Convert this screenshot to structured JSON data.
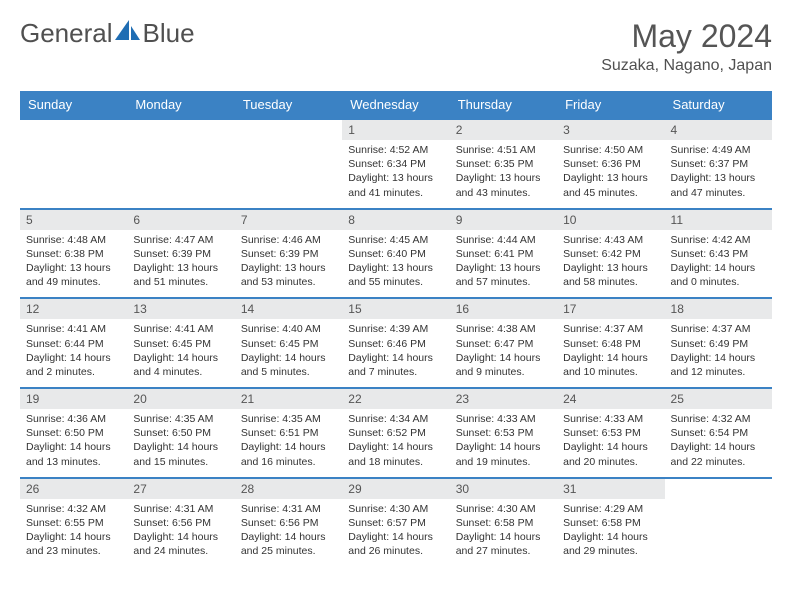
{
  "brand": {
    "text1": "General",
    "text2": "Blue"
  },
  "title": "May 2024",
  "location": "Suzaka, Nagano, Japan",
  "colors": {
    "header_bg": "#3b82c4",
    "header_text": "#ffffff",
    "daynum_bg": "#e8e9ea",
    "row_border": "#3b82c4",
    "text": "#333333",
    "title_color": "#555555"
  },
  "day_headers": [
    "Sunday",
    "Monday",
    "Tuesday",
    "Wednesday",
    "Thursday",
    "Friday",
    "Saturday"
  ],
  "weeks": [
    [
      {
        "num": "",
        "lines": []
      },
      {
        "num": "",
        "lines": []
      },
      {
        "num": "",
        "lines": []
      },
      {
        "num": "1",
        "lines": [
          "Sunrise: 4:52 AM",
          "Sunset: 6:34 PM",
          "Daylight: 13 hours",
          "and 41 minutes."
        ]
      },
      {
        "num": "2",
        "lines": [
          "Sunrise: 4:51 AM",
          "Sunset: 6:35 PM",
          "Daylight: 13 hours",
          "and 43 minutes."
        ]
      },
      {
        "num": "3",
        "lines": [
          "Sunrise: 4:50 AM",
          "Sunset: 6:36 PM",
          "Daylight: 13 hours",
          "and 45 minutes."
        ]
      },
      {
        "num": "4",
        "lines": [
          "Sunrise: 4:49 AM",
          "Sunset: 6:37 PM",
          "Daylight: 13 hours",
          "and 47 minutes."
        ]
      }
    ],
    [
      {
        "num": "5",
        "lines": [
          "Sunrise: 4:48 AM",
          "Sunset: 6:38 PM",
          "Daylight: 13 hours",
          "and 49 minutes."
        ]
      },
      {
        "num": "6",
        "lines": [
          "Sunrise: 4:47 AM",
          "Sunset: 6:39 PM",
          "Daylight: 13 hours",
          "and 51 minutes."
        ]
      },
      {
        "num": "7",
        "lines": [
          "Sunrise: 4:46 AM",
          "Sunset: 6:39 PM",
          "Daylight: 13 hours",
          "and 53 minutes."
        ]
      },
      {
        "num": "8",
        "lines": [
          "Sunrise: 4:45 AM",
          "Sunset: 6:40 PM",
          "Daylight: 13 hours",
          "and 55 minutes."
        ]
      },
      {
        "num": "9",
        "lines": [
          "Sunrise: 4:44 AM",
          "Sunset: 6:41 PM",
          "Daylight: 13 hours",
          "and 57 minutes."
        ]
      },
      {
        "num": "10",
        "lines": [
          "Sunrise: 4:43 AM",
          "Sunset: 6:42 PM",
          "Daylight: 13 hours",
          "and 58 minutes."
        ]
      },
      {
        "num": "11",
        "lines": [
          "Sunrise: 4:42 AM",
          "Sunset: 6:43 PM",
          "Daylight: 14 hours",
          "and 0 minutes."
        ]
      }
    ],
    [
      {
        "num": "12",
        "lines": [
          "Sunrise: 4:41 AM",
          "Sunset: 6:44 PM",
          "Daylight: 14 hours",
          "and 2 minutes."
        ]
      },
      {
        "num": "13",
        "lines": [
          "Sunrise: 4:41 AM",
          "Sunset: 6:45 PM",
          "Daylight: 14 hours",
          "and 4 minutes."
        ]
      },
      {
        "num": "14",
        "lines": [
          "Sunrise: 4:40 AM",
          "Sunset: 6:45 PM",
          "Daylight: 14 hours",
          "and 5 minutes."
        ]
      },
      {
        "num": "15",
        "lines": [
          "Sunrise: 4:39 AM",
          "Sunset: 6:46 PM",
          "Daylight: 14 hours",
          "and 7 minutes."
        ]
      },
      {
        "num": "16",
        "lines": [
          "Sunrise: 4:38 AM",
          "Sunset: 6:47 PM",
          "Daylight: 14 hours",
          "and 9 minutes."
        ]
      },
      {
        "num": "17",
        "lines": [
          "Sunrise: 4:37 AM",
          "Sunset: 6:48 PM",
          "Daylight: 14 hours",
          "and 10 minutes."
        ]
      },
      {
        "num": "18",
        "lines": [
          "Sunrise: 4:37 AM",
          "Sunset: 6:49 PM",
          "Daylight: 14 hours",
          "and 12 minutes."
        ]
      }
    ],
    [
      {
        "num": "19",
        "lines": [
          "Sunrise: 4:36 AM",
          "Sunset: 6:50 PM",
          "Daylight: 14 hours",
          "and 13 minutes."
        ]
      },
      {
        "num": "20",
        "lines": [
          "Sunrise: 4:35 AM",
          "Sunset: 6:50 PM",
          "Daylight: 14 hours",
          "and 15 minutes."
        ]
      },
      {
        "num": "21",
        "lines": [
          "Sunrise: 4:35 AM",
          "Sunset: 6:51 PM",
          "Daylight: 14 hours",
          "and 16 minutes."
        ]
      },
      {
        "num": "22",
        "lines": [
          "Sunrise: 4:34 AM",
          "Sunset: 6:52 PM",
          "Daylight: 14 hours",
          "and 18 minutes."
        ]
      },
      {
        "num": "23",
        "lines": [
          "Sunrise: 4:33 AM",
          "Sunset: 6:53 PM",
          "Daylight: 14 hours",
          "and 19 minutes."
        ]
      },
      {
        "num": "24",
        "lines": [
          "Sunrise: 4:33 AM",
          "Sunset: 6:53 PM",
          "Daylight: 14 hours",
          "and 20 minutes."
        ]
      },
      {
        "num": "25",
        "lines": [
          "Sunrise: 4:32 AM",
          "Sunset: 6:54 PM",
          "Daylight: 14 hours",
          "and 22 minutes."
        ]
      }
    ],
    [
      {
        "num": "26",
        "lines": [
          "Sunrise: 4:32 AM",
          "Sunset: 6:55 PM",
          "Daylight: 14 hours",
          "and 23 minutes."
        ]
      },
      {
        "num": "27",
        "lines": [
          "Sunrise: 4:31 AM",
          "Sunset: 6:56 PM",
          "Daylight: 14 hours",
          "and 24 minutes."
        ]
      },
      {
        "num": "28",
        "lines": [
          "Sunrise: 4:31 AM",
          "Sunset: 6:56 PM",
          "Daylight: 14 hours",
          "and 25 minutes."
        ]
      },
      {
        "num": "29",
        "lines": [
          "Sunrise: 4:30 AM",
          "Sunset: 6:57 PM",
          "Daylight: 14 hours",
          "and 26 minutes."
        ]
      },
      {
        "num": "30",
        "lines": [
          "Sunrise: 4:30 AM",
          "Sunset: 6:58 PM",
          "Daylight: 14 hours",
          "and 27 minutes."
        ]
      },
      {
        "num": "31",
        "lines": [
          "Sunrise: 4:29 AM",
          "Sunset: 6:58 PM",
          "Daylight: 14 hours",
          "and 29 minutes."
        ]
      },
      {
        "num": "",
        "lines": []
      }
    ]
  ]
}
